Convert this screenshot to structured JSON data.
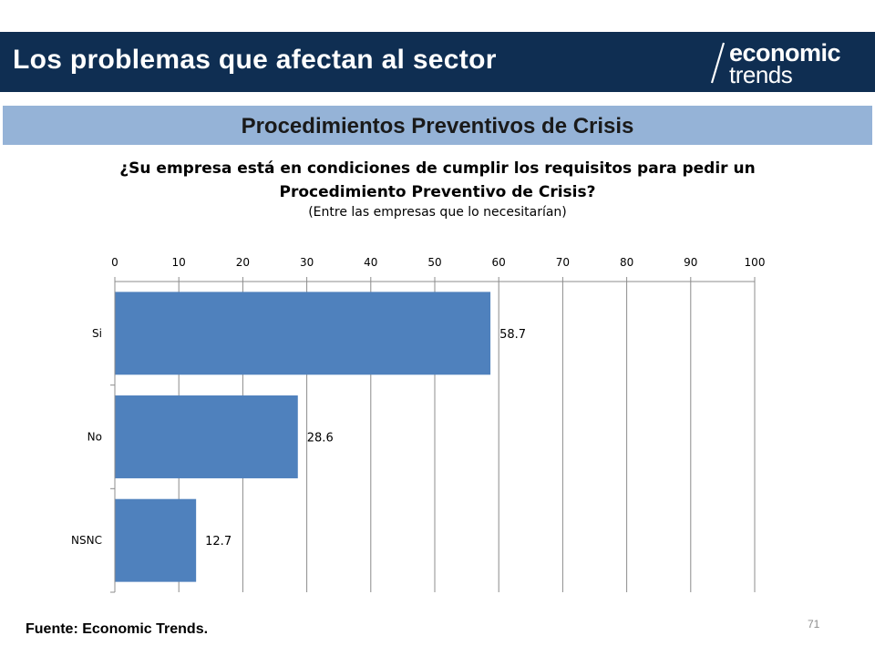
{
  "header": {
    "title": "Los problemas que afectan al sector"
  },
  "logo": {
    "line1": "economic",
    "line2": "trends"
  },
  "section": {
    "title": "Procedimientos Preventivos de Crisis"
  },
  "question": {
    "line1": "¿Su empresa está en condiciones de cumplir los requisitos para pedir un",
    "line2": "Procedimiento Preventivo de Crisis?",
    "line3": "(Entre las empresas que lo necesitarían)"
  },
  "colors": {
    "header_bg": "#0f2e52",
    "section_bg": "#95b3d7",
    "bar": "#4f81bd"
  },
  "chart_data": {
    "type": "bar",
    "orientation": "horizontal",
    "categories": [
      "Si",
      "No",
      "NSNC"
    ],
    "values": [
      58.7,
      28.6,
      12.7
    ],
    "value_labels": [
      "58.7",
      "28.6",
      "12.7"
    ],
    "xlim": [
      0,
      100
    ],
    "xticks": [
      0,
      10,
      20,
      30,
      40,
      50,
      60,
      70,
      80,
      90,
      100
    ],
    "xtick_labels": [
      "0",
      "10",
      "20",
      "30",
      "40",
      "50",
      "60",
      "70",
      "80",
      "90",
      "100"
    ],
    "axis_position": "top",
    "grid": true
  },
  "footer": {
    "source": "Fuente: Economic Trends.",
    "page_number": "71"
  }
}
